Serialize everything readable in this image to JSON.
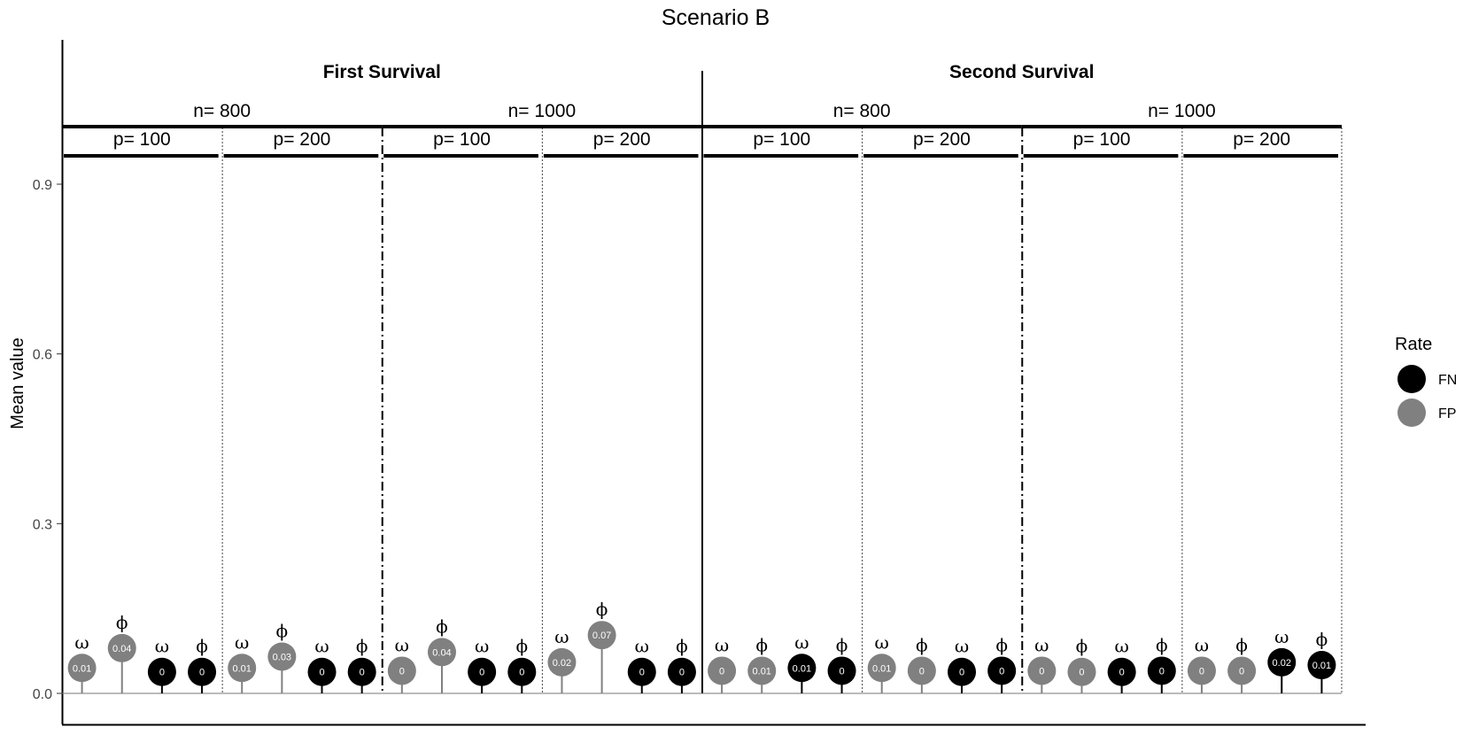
{
  "chart_data": {
    "type": "lollipop",
    "title": "Scenario B",
    "ylabel": "Mean value",
    "xlabel": "",
    "ylim": [
      0,
      1.1
    ],
    "yticks": [
      0.0,
      0.3,
      0.6,
      0.9
    ],
    "ytick_labels": [
      "0.0",
      "0.3",
      "0.6",
      "0.9"
    ],
    "legend": {
      "title": "Rate",
      "position": "right",
      "items": [
        {
          "label": "FN",
          "color": "#000000"
        },
        {
          "label": "FP",
          "color": "#808080"
        }
      ]
    },
    "groups": [
      {
        "label": "First Survival",
        "n": [
          {
            "label": "n= 800",
            "p": [
              {
                "label": "p= 100",
                "points": [
                  {
                    "rate": "FP",
                    "param": "ω",
                    "value": 0.045,
                    "label": "0.01"
                  },
                  {
                    "rate": "FP",
                    "param": "ϕ",
                    "value": 0.08,
                    "label": "0.04"
                  },
                  {
                    "rate": "FN",
                    "param": "ω",
                    "value": 0.038,
                    "label": "0"
                  },
                  {
                    "rate": "FN",
                    "param": "ϕ",
                    "value": 0.038,
                    "label": "0"
                  }
                ]
              },
              {
                "label": "p= 200",
                "points": [
                  {
                    "rate": "FP",
                    "param": "ω",
                    "value": 0.045,
                    "label": "0.01"
                  },
                  {
                    "rate": "FP",
                    "param": "ϕ",
                    "value": 0.065,
                    "label": "0.03"
                  },
                  {
                    "rate": "FN",
                    "param": "ω",
                    "value": 0.038,
                    "label": "0"
                  },
                  {
                    "rate": "FN",
                    "param": "ϕ",
                    "value": 0.038,
                    "label": "0"
                  }
                ]
              }
            ]
          },
          {
            "label": "n= 1000",
            "p": [
              {
                "label": "p= 100",
                "points": [
                  {
                    "rate": "FP",
                    "param": "ω",
                    "value": 0.04,
                    "label": "0"
                  },
                  {
                    "rate": "FP",
                    "param": "ϕ",
                    "value": 0.073,
                    "label": "0.04"
                  },
                  {
                    "rate": "FN",
                    "param": "ω",
                    "value": 0.038,
                    "label": "0"
                  },
                  {
                    "rate": "FN",
                    "param": "ϕ",
                    "value": 0.038,
                    "label": "0"
                  }
                ]
              },
              {
                "label": "p= 200",
                "points": [
                  {
                    "rate": "FP",
                    "param": "ω",
                    "value": 0.055,
                    "label": "0.02"
                  },
                  {
                    "rate": "FP",
                    "param": "ϕ",
                    "value": 0.103,
                    "label": "0.07"
                  },
                  {
                    "rate": "FN",
                    "param": "ω",
                    "value": 0.038,
                    "label": "0"
                  },
                  {
                    "rate": "FN",
                    "param": "ϕ",
                    "value": 0.038,
                    "label": "0"
                  }
                ]
              }
            ]
          }
        ]
      },
      {
        "label": "Second Survival",
        "n": [
          {
            "label": "n= 800",
            "p": [
              {
                "label": "p= 100",
                "points": [
                  {
                    "rate": "FP",
                    "param": "ω",
                    "value": 0.04,
                    "label": "0"
                  },
                  {
                    "rate": "FP",
                    "param": "ϕ",
                    "value": 0.04,
                    "label": "0.01"
                  },
                  {
                    "rate": "FN",
                    "param": "ω",
                    "value": 0.045,
                    "label": "0.01"
                  },
                  {
                    "rate": "FN",
                    "param": "ϕ",
                    "value": 0.04,
                    "label": "0"
                  }
                ]
              },
              {
                "label": "p= 200",
                "points": [
                  {
                    "rate": "FP",
                    "param": "ω",
                    "value": 0.045,
                    "label": "0.01"
                  },
                  {
                    "rate": "FP",
                    "param": "ϕ",
                    "value": 0.04,
                    "label": "0"
                  },
                  {
                    "rate": "FN",
                    "param": "ω",
                    "value": 0.038,
                    "label": "0"
                  },
                  {
                    "rate": "FN",
                    "param": "ϕ",
                    "value": 0.04,
                    "label": "0"
                  }
                ]
              }
            ]
          },
          {
            "label": "n= 1000",
            "p": [
              {
                "label": "p= 100",
                "points": [
                  {
                    "rate": "FP",
                    "param": "ω",
                    "value": 0.04,
                    "label": "0"
                  },
                  {
                    "rate": "FP",
                    "param": "ϕ",
                    "value": 0.038,
                    "label": "0"
                  },
                  {
                    "rate": "FN",
                    "param": "ω",
                    "value": 0.038,
                    "label": "0"
                  },
                  {
                    "rate": "FN",
                    "param": "ϕ",
                    "value": 0.04,
                    "label": "0"
                  }
                ]
              },
              {
                "label": "p= 200",
                "points": [
                  {
                    "rate": "FP",
                    "param": "ω",
                    "value": 0.04,
                    "label": "0"
                  },
                  {
                    "rate": "FP",
                    "param": "ϕ",
                    "value": 0.04,
                    "label": "0"
                  },
                  {
                    "rate": "FN",
                    "param": "ω",
                    "value": 0.055,
                    "label": "0.02"
                  },
                  {
                    "rate": "FN",
                    "param": "ϕ",
                    "value": 0.05,
                    "label": "0.01"
                  }
                ]
              }
            ]
          }
        ]
      }
    ]
  }
}
